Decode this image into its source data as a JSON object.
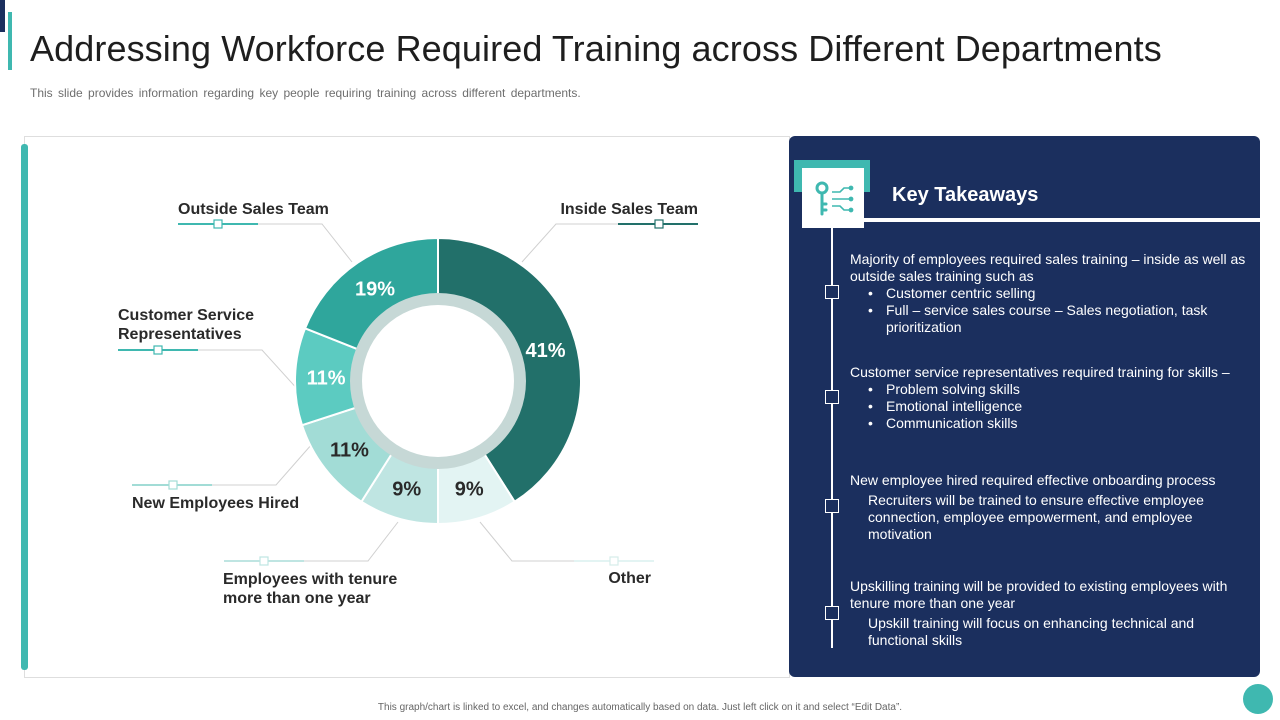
{
  "slide": {
    "title": "Addressing Workforce Required Training across Different Departments",
    "subtitle": "This slide provides information regarding key people requiring training across different departments.",
    "footer": "This graph/chart is linked to excel, and changes automatically based on data. Just left click on it and select “Edit Data”."
  },
  "colors": {
    "navy": "#1b2f5e",
    "teal": "#3fb8b0"
  },
  "chart_data": {
    "type": "pie",
    "variant": "donut",
    "categories": [
      "Inside Sales Team",
      "Other",
      "Employees with tenure more than one year",
      "New Employees Hired",
      "Customer Service Representatives",
      "Outside Sales Team"
    ],
    "values": [
      41,
      9,
      9,
      11,
      11,
      19
    ],
    "value_labels": [
      "41%",
      "9%",
      "9%",
      "11%",
      "11%",
      "19%"
    ],
    "colors": [
      "#22706a",
      "#e3f4f3",
      "#bfe5e2",
      "#a2dcd6",
      "#5ccbc1",
      "#2fa69c"
    ],
    "label_colors": [
      "#ffffff",
      "#2a2a2a",
      "#2a2a2a",
      "#2a2a2a",
      "#ffffff",
      "#ffffff"
    ]
  },
  "key_takeaways": {
    "icon": "key-icon",
    "title": "Key Takeaways",
    "items": [
      {
        "text": "Majority of employees required sales training – inside as well as outside sales training  such as",
        "bullets": [
          "Customer centric selling",
          "Full – service sales course – Sales negotiation, task prioritization"
        ]
      },
      {
        "text": "Customer service representatives required training for skills –",
        "bullets": [
          "Problem solving skills",
          "Emotional intelligence",
          "Communication skills"
        ]
      },
      {
        "text": "New  employee hired required effective onboarding process",
        "sub": "Recruiters will be trained to ensure effective employee connection,  employee empowerment,  and employee motivation"
      },
      {
        "text": "Upskilling training will  be provided to existing employees with tenure more than one year",
        "sub": "Upskill training will focus on enhancing technical and functional skills"
      }
    ]
  }
}
